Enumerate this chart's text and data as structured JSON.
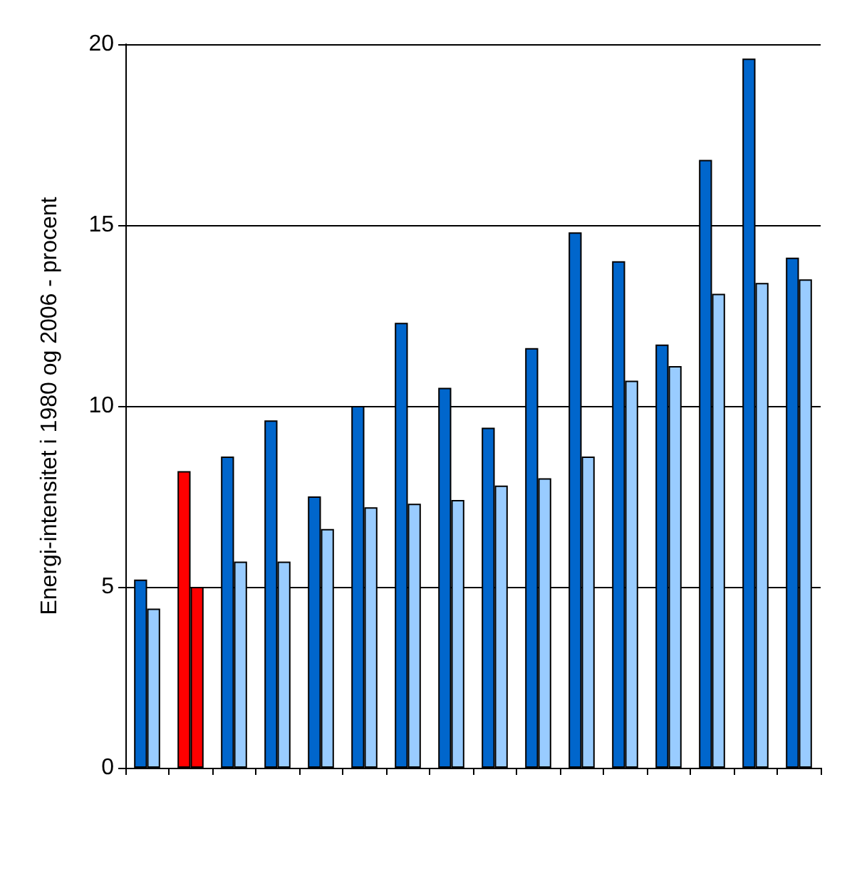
{
  "chart_data": {
    "type": "bar",
    "ylabel": "Energi-intensitet i 1980 og 2006 - procent",
    "categories": [
      null,
      null,
      null,
      null,
      null,
      null,
      null,
      null,
      null,
      null,
      null,
      null,
      null,
      null,
      null,
      null
    ],
    "series": [
      {
        "colors": [
          "#0066cc",
          "#ff0000",
          "#0066cc",
          "#0066cc",
          "#0066cc",
          "#0066cc",
          "#0066cc",
          "#0066cc",
          "#0066cc",
          "#0066cc",
          "#0066cc",
          "#0066cc",
          "#0066cc",
          "#0066cc",
          "#0066cc",
          "#0066cc"
        ],
        "values": [
          5.2,
          8.2,
          8.6,
          9.6,
          7.5,
          10.0,
          12.3,
          10.5,
          9.4,
          11.6,
          14.8,
          14.0,
          11.7,
          16.8,
          19.6,
          14.1
        ]
      },
      {
        "colors": [
          "#99ccff",
          "#ff0000",
          "#99ccff",
          "#99ccff",
          "#99ccff",
          "#99ccff",
          "#99ccff",
          "#99ccff",
          "#99ccff",
          "#99ccff",
          "#99ccff",
          "#99ccff",
          "#99ccff",
          "#99ccff",
          "#99ccff",
          "#99ccff"
        ],
        "values": [
          4.4,
          5.0,
          5.7,
          5.7,
          6.6,
          7.2,
          7.3,
          7.4,
          7.8,
          8.0,
          8.6,
          10.7,
          11.1,
          13.1,
          13.4,
          13.5
        ]
      }
    ],
    "ylim": [
      0,
      20
    ],
    "yticks": [
      0,
      5,
      10,
      15,
      20
    ],
    "grid": "y"
  }
}
